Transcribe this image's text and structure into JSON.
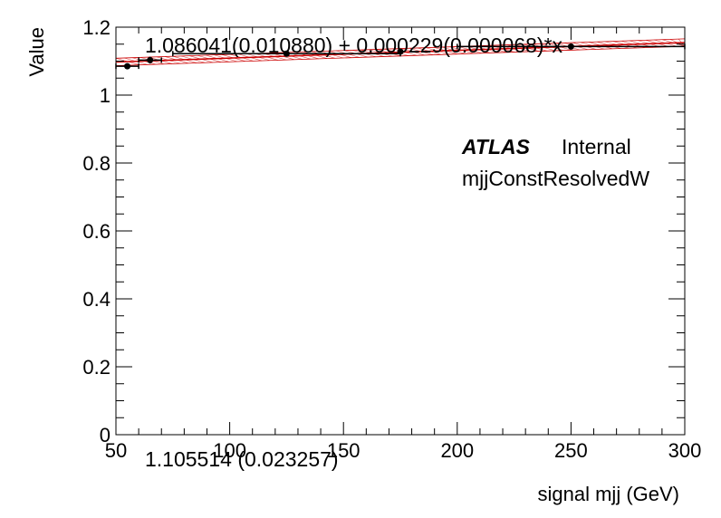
{
  "chart_data": {
    "type": "scatter",
    "xlabel": "signal mjj (GeV)",
    "ylabel": "Value",
    "xlim": [
      50,
      300
    ],
    "ylim": [
      0,
      1.2
    ],
    "x_ticks": [
      50,
      100,
      150,
      200,
      250,
      300
    ],
    "x_tick_labels": [
      "50",
      "100",
      "150",
      "200",
      "250",
      "300"
    ],
    "y_ticks": [
      0,
      0.2,
      0.4,
      0.6,
      0.8,
      1.0,
      1.2
    ],
    "y_tick_labels": [
      "0",
      "0.2",
      "0.4",
      "0.6",
      "0.8",
      "1",
      "1.2"
    ],
    "grid": false,
    "points": [
      {
        "x": 55,
        "y": 1.085,
        "xerr": 5,
        "yerr": 0.008
      },
      {
        "x": 65,
        "y": 1.103,
        "xerr": 5,
        "yerr": 0.01
      },
      {
        "x": 125,
        "y": 1.122,
        "xerr": 50,
        "yerr": 0.006
      },
      {
        "x": 175,
        "y": 1.128,
        "xerr": 0,
        "yerr": 0.006
      },
      {
        "x": 250,
        "y": 1.143,
        "xerr": 50,
        "yerr": 0.005
      }
    ],
    "fit": {
      "intercept": 1.086041,
      "slope": 0.000229,
      "band_halfwidth": 0.011,
      "color": "#cc0000"
    },
    "fit_label": "1.086041(0.010880) + 0.000229(0.000068)*x",
    "constant_label": "1.105514 (0.023257)",
    "annotation_brand": "ATLAS",
    "annotation_status": "Internal",
    "annotation_sample": "mjjConstResolvedW"
  }
}
